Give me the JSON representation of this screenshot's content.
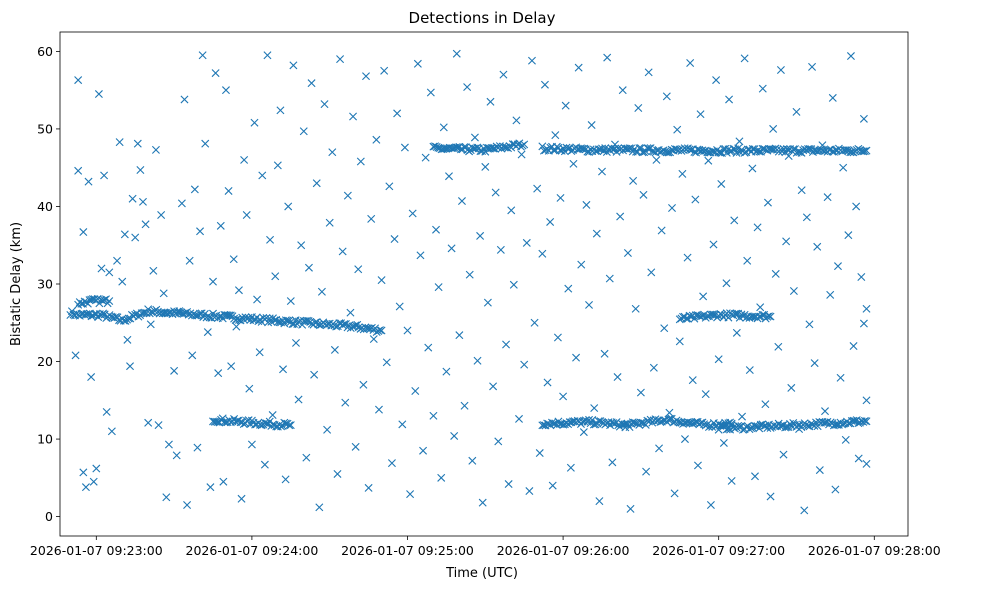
{
  "chart_data": {
    "type": "scatter",
    "title": "Detections in Delay",
    "xlabel": "Time (UTC)",
    "ylabel": "Bistatic Delay (km)",
    "marker": "x",
    "color": "#1f77b4",
    "x_unit": "seconds after 2026-01-07 09:22:00",
    "xlim": [
      46,
      373
    ],
    "ylim": [
      -2.5,
      62.5
    ],
    "x_ticks": [
      {
        "value": 60,
        "label": "2026-01-07 09:23:00"
      },
      {
        "value": 120,
        "label": "2026-01-07 09:24:00"
      },
      {
        "value": 180,
        "label": "2026-01-07 09:25:00"
      },
      {
        "value": 240,
        "label": "2026-01-07 09:26:00"
      },
      {
        "value": 300,
        "label": "2026-01-07 09:27:00"
      },
      {
        "value": 360,
        "label": "2026-01-07 09:28:00"
      }
    ],
    "y_ticks": [
      {
        "value": 0,
        "label": "0"
      },
      {
        "value": 10,
        "label": "10"
      },
      {
        "value": 20,
        "label": "20"
      },
      {
        "value": 30,
        "label": "30"
      },
      {
        "value": 40,
        "label": "40"
      },
      {
        "value": 50,
        "label": "50"
      },
      {
        "value": 60,
        "label": "60"
      }
    ],
    "x_range_data": [
      49,
      358
    ],
    "tracks": [
      {
        "name": "track-1",
        "points": [
          [
            50,
            26.3
          ],
          [
            53,
            26.0
          ],
          [
            62,
            26.0
          ],
          [
            70,
            25.3
          ],
          [
            80,
            26.5
          ],
          [
            100,
            26.0
          ],
          [
            120,
            25.5
          ],
          [
            140,
            25.0
          ],
          [
            160,
            24.5
          ],
          [
            170,
            24.0
          ]
        ]
      },
      {
        "name": "track-2",
        "points": [
          [
            53,
            27.5
          ],
          [
            58,
            27.8
          ],
          [
            65,
            27.8
          ]
        ]
      },
      {
        "name": "track-3",
        "points": [
          [
            105,
            12.5
          ],
          [
            125,
            12.0
          ],
          [
            135,
            11.8
          ]
        ]
      },
      {
        "name": "track-4",
        "points": [
          [
            190,
            47.5
          ],
          [
            210,
            47.3
          ],
          [
            225,
            48.0
          ]
        ]
      },
      {
        "name": "track-5",
        "points": [
          [
            232,
            47.5
          ],
          [
            250,
            47.3
          ],
          [
            300,
            47.2
          ],
          [
            357,
            47.2
          ]
        ]
      },
      {
        "name": "track-6",
        "points": [
          [
            232,
            12.0
          ],
          [
            250,
            12.2
          ],
          [
            265,
            11.8
          ],
          [
            280,
            12.5
          ],
          [
            295,
            11.8
          ],
          [
            305,
            12.0
          ]
        ]
      },
      {
        "name": "track-7",
        "points": [
          [
            300,
            11.5
          ],
          [
            310,
            11.5
          ],
          [
            330,
            11.8
          ],
          [
            357,
            12.3
          ]
        ]
      },
      {
        "name": "track-8",
        "points": [
          [
            285,
            25.5
          ],
          [
            300,
            26.0
          ],
          [
            320,
            25.8
          ]
        ]
      }
    ],
    "scatter_points": [
      [
        52,
        20.8
      ],
      [
        53,
        44.6
      ],
      [
        53,
        56.3
      ],
      [
        55,
        5.7
      ],
      [
        55,
        36.7
      ],
      [
        56,
        3.8
      ],
      [
        57,
        43.2
      ],
      [
        58,
        18.0
      ],
      [
        59,
        4.5
      ],
      [
        60,
        6.2
      ],
      [
        61,
        54.5
      ],
      [
        62,
        32.0
      ],
      [
        63,
        44.0
      ],
      [
        64,
        13.5
      ],
      [
        65,
        31.5
      ],
      [
        66,
        11.0
      ],
      [
        68,
        33.0
      ],
      [
        69,
        48.3
      ],
      [
        70,
        30.3
      ],
      [
        71,
        36.4
      ],
      [
        72,
        22.8
      ],
      [
        73,
        19.4
      ],
      [
        74,
        41.0
      ],
      [
        75,
        36.0
      ],
      [
        76,
        48.1
      ],
      [
        77,
        44.7
      ],
      [
        78,
        40.6
      ],
      [
        79,
        37.7
      ],
      [
        80,
        12.1
      ],
      [
        81,
        24.8
      ],
      [
        82,
        31.7
      ],
      [
        83,
        47.3
      ],
      [
        84,
        11.8
      ],
      [
        85,
        38.9
      ],
      [
        86,
        28.8
      ],
      [
        87,
        2.5
      ],
      [
        88,
        9.3
      ],
      [
        90,
        18.8
      ],
      [
        91,
        7.9
      ],
      [
        92,
        26.5
      ],
      [
        93,
        40.4
      ],
      [
        94,
        53.8
      ],
      [
        95,
        1.5
      ],
      [
        96,
        33.0
      ],
      [
        97,
        20.8
      ],
      [
        98,
        42.2
      ],
      [
        99,
        8.9
      ],
      [
        100,
        36.8
      ],
      [
        101,
        59.5
      ],
      [
        102,
        48.1
      ],
      [
        103,
        23.8
      ],
      [
        104,
        3.8
      ],
      [
        105,
        30.3
      ],
      [
        106,
        57.2
      ],
      [
        107,
        18.5
      ],
      [
        108,
        37.5
      ],
      [
        109,
        4.5
      ],
      [
        110,
        55.0
      ],
      [
        111,
        42.0
      ],
      [
        112,
        19.4
      ],
      [
        113,
        33.2
      ],
      [
        114,
        24.5
      ],
      [
        115,
        29.2
      ],
      [
        116,
        2.3
      ],
      [
        117,
        46.0
      ],
      [
        118,
        38.9
      ],
      [
        119,
        16.5
      ],
      [
        120,
        9.3
      ],
      [
        121,
        50.8
      ],
      [
        122,
        28.0
      ],
      [
        123,
        21.2
      ],
      [
        124,
        44.0
      ],
      [
        125,
        6.7
      ],
      [
        126,
        59.5
      ],
      [
        127,
        35.7
      ],
      [
        128,
        13.1
      ],
      [
        129,
        31.0
      ],
      [
        130,
        45.3
      ],
      [
        131,
        52.4
      ],
      [
        132,
        19.0
      ],
      [
        133,
        4.8
      ],
      [
        134,
        40.0
      ],
      [
        135,
        27.8
      ],
      [
        136,
        58.2
      ],
      [
        137,
        22.4
      ],
      [
        138,
        15.1
      ],
      [
        139,
        35.0
      ],
      [
        140,
        49.7
      ],
      [
        141,
        7.6
      ],
      [
        142,
        32.1
      ],
      [
        143,
        55.9
      ],
      [
        144,
        18.3
      ],
      [
        145,
        43.0
      ],
      [
        146,
        1.2
      ],
      [
        147,
        29.0
      ],
      [
        148,
        53.2
      ],
      [
        149,
        11.2
      ],
      [
        150,
        37.9
      ],
      [
        151,
        47.0
      ],
      [
        152,
        21.5
      ],
      [
        153,
        5.5
      ],
      [
        154,
        59.0
      ],
      [
        155,
        34.2
      ],
      [
        156,
        14.7
      ],
      [
        157,
        41.4
      ],
      [
        158,
        26.3
      ],
      [
        159,
        51.6
      ],
      [
        160,
        9.0
      ],
      [
        161,
        31.9
      ],
      [
        162,
        45.8
      ],
      [
        163,
        17.0
      ],
      [
        164,
        56.8
      ],
      [
        165,
        3.7
      ],
      [
        166,
        38.4
      ],
      [
        167,
        22.9
      ],
      [
        168,
        48.6
      ],
      [
        169,
        13.8
      ],
      [
        170,
        30.5
      ],
      [
        171,
        57.5
      ],
      [
        172,
        19.9
      ],
      [
        173,
        42.6
      ],
      [
        174,
        6.9
      ],
      [
        175,
        35.8
      ],
      [
        176,
        52.0
      ],
      [
        177,
        27.1
      ],
      [
        178,
        11.9
      ],
      [
        179,
        47.6
      ],
      [
        180,
        24.0
      ],
      [
        181,
        2.9
      ],
      [
        182,
        39.1
      ],
      [
        183,
        16.2
      ],
      [
        184,
        58.4
      ],
      [
        185,
        33.7
      ],
      [
        186,
        8.5
      ],
      [
        187,
        46.3
      ],
      [
        188,
        21.8
      ],
      [
        189,
        54.7
      ],
      [
        190,
        13.0
      ],
      [
        191,
        37.0
      ],
      [
        192,
        29.6
      ],
      [
        193,
        5.0
      ],
      [
        194,
        50.2
      ],
      [
        195,
        18.7
      ],
      [
        196,
        43.9
      ],
      [
        197,
        34.6
      ],
      [
        198,
        10.4
      ],
      [
        199,
        59.7
      ],
      [
        200,
        23.4
      ],
      [
        201,
        40.7
      ],
      [
        202,
        14.3
      ],
      [
        203,
        55.4
      ],
      [
        204,
        31.2
      ],
      [
        205,
        7.2
      ],
      [
        206,
        48.9
      ],
      [
        207,
        20.1
      ],
      [
        208,
        36.2
      ],
      [
        209,
        1.8
      ],
      [
        210,
        45.1
      ],
      [
        211,
        27.6
      ],
      [
        212,
        53.5
      ],
      [
        213,
        16.8
      ],
      [
        214,
        41.8
      ],
      [
        215,
        9.7
      ],
      [
        216,
        34.4
      ],
      [
        217,
        57.0
      ],
      [
        218,
        22.2
      ],
      [
        219,
        4.2
      ],
      [
        220,
        39.5
      ],
      [
        221,
        29.9
      ],
      [
        222,
        51.1
      ],
      [
        223,
        12.6
      ],
      [
        224,
        46.7
      ],
      [
        225,
        19.6
      ],
      [
        226,
        35.3
      ],
      [
        227,
        3.3
      ],
      [
        228,
        58.8
      ],
      [
        229,
        25.0
      ],
      [
        230,
        42.3
      ],
      [
        231,
        8.2
      ],
      [
        232,
        33.9
      ],
      [
        233,
        55.7
      ],
      [
        234,
        17.3
      ],
      [
        235,
        38.0
      ],
      [
        236,
        4.0
      ],
      [
        237,
        49.2
      ],
      [
        238,
        23.1
      ],
      [
        239,
        41.1
      ],
      [
        240,
        15.5
      ],
      [
        241,
        53.0
      ],
      [
        242,
        29.4
      ],
      [
        243,
        6.3
      ],
      [
        244,
        45.5
      ],
      [
        245,
        20.5
      ],
      [
        246,
        57.9
      ],
      [
        247,
        32.5
      ],
      [
        248,
        10.9
      ],
      [
        249,
        40.2
      ],
      [
        250,
        27.3
      ],
      [
        251,
        50.5
      ],
      [
        252,
        14.0
      ],
      [
        253,
        36.5
      ],
      [
        254,
        2.0
      ],
      [
        255,
        44.5
      ],
      [
        256,
        21.0
      ],
      [
        257,
        59.2
      ],
      [
        258,
        30.7
      ],
      [
        259,
        7.0
      ],
      [
        260,
        48.0
      ],
      [
        261,
        18.0
      ],
      [
        262,
        38.7
      ],
      [
        263,
        55.0
      ],
      [
        264,
        11.5
      ],
      [
        265,
        34.0
      ],
      [
        266,
        1.0
      ],
      [
        267,
        43.3
      ],
      [
        268,
        26.8
      ],
      [
        269,
        52.7
      ],
      [
        270,
        16.0
      ],
      [
        271,
        41.5
      ],
      [
        272,
        5.8
      ],
      [
        273,
        57.3
      ],
      [
        274,
        31.5
      ],
      [
        275,
        19.2
      ],
      [
        276,
        46.0
      ],
      [
        277,
        8.8
      ],
      [
        278,
        36.9
      ],
      [
        279,
        24.3
      ],
      [
        280,
        54.2
      ],
      [
        281,
        13.4
      ],
      [
        282,
        39.8
      ],
      [
        283,
        3.0
      ],
      [
        284,
        49.9
      ],
      [
        285,
        22.6
      ],
      [
        286,
        44.2
      ],
      [
        287,
        10.0
      ],
      [
        288,
        33.4
      ],
      [
        289,
        58.5
      ],
      [
        290,
        17.6
      ],
      [
        291,
        40.9
      ],
      [
        292,
        6.6
      ],
      [
        293,
        51.9
      ],
      [
        294,
        28.4
      ],
      [
        295,
        15.8
      ],
      [
        296,
        45.9
      ],
      [
        297,
        1.5
      ],
      [
        298,
        35.1
      ],
      [
        299,
        56.3
      ],
      [
        300,
        20.3
      ],
      [
        301,
        42.9
      ],
      [
        302,
        9.5
      ],
      [
        303,
        30.1
      ],
      [
        304,
        53.8
      ],
      [
        305,
        4.6
      ],
      [
        306,
        38.2
      ],
      [
        307,
        23.7
      ],
      [
        308,
        48.4
      ],
      [
        309,
        12.9
      ],
      [
        310,
        59.1
      ],
      [
        311,
        33.0
      ],
      [
        312,
        18.9
      ],
      [
        313,
        44.9
      ],
      [
        314,
        5.2
      ],
      [
        315,
        37.3
      ],
      [
        316,
        27.0
      ],
      [
        317,
        55.2
      ],
      [
        318,
        14.5
      ],
      [
        319,
        40.5
      ],
      [
        320,
        2.6
      ],
      [
        321,
        50.0
      ],
      [
        322,
        31.3
      ],
      [
        323,
        21.9
      ],
      [
        324,
        57.6
      ],
      [
        325,
        8.0
      ],
      [
        326,
        35.5
      ],
      [
        327,
        46.5
      ],
      [
        328,
        16.6
      ],
      [
        329,
        29.1
      ],
      [
        330,
        52.2
      ],
      [
        331,
        11.3
      ],
      [
        332,
        42.1
      ],
      [
        333,
        0.8
      ],
      [
        334,
        38.6
      ],
      [
        335,
        24.8
      ],
      [
        336,
        58.0
      ],
      [
        337,
        19.8
      ],
      [
        338,
        34.8
      ],
      [
        339,
        6.0
      ],
      [
        340,
        47.9
      ],
      [
        341,
        13.6
      ],
      [
        342,
        41.2
      ],
      [
        343,
        28.6
      ],
      [
        344,
        54.0
      ],
      [
        345,
        3.5
      ],
      [
        346,
        32.3
      ],
      [
        347,
        17.9
      ],
      [
        348,
        45.0
      ],
      [
        349,
        9.9
      ],
      [
        350,
        36.3
      ],
      [
        351,
        59.4
      ],
      [
        352,
        22.0
      ],
      [
        353,
        40.0
      ],
      [
        354,
        7.5
      ],
      [
        355,
        30.9
      ],
      [
        356,
        51.3
      ],
      [
        357,
        15.0
      ],
      [
        357,
        26.8
      ],
      [
        357,
        6.8
      ],
      [
        356,
        24.9
      ]
    ]
  }
}
